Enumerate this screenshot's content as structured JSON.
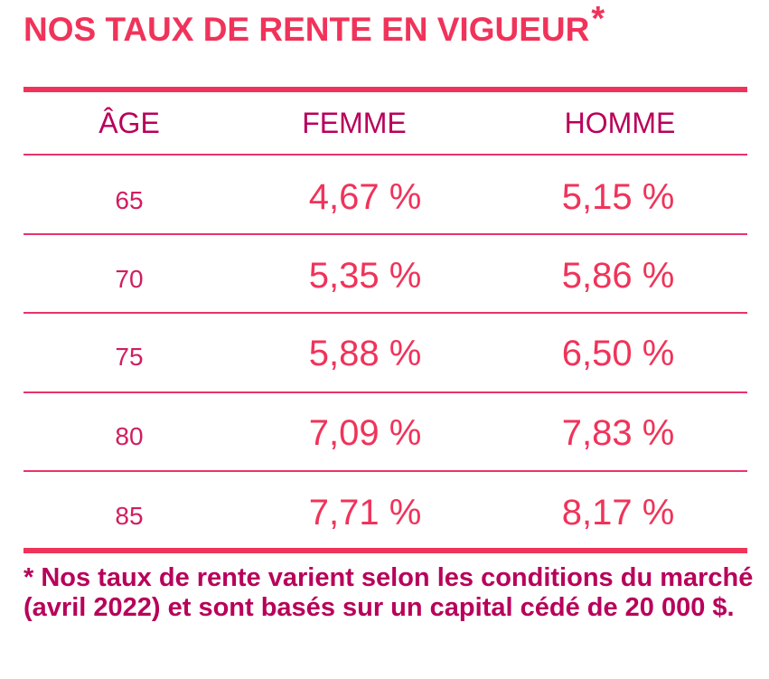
{
  "title": "NOS TAUX DE RENTE EN VIGUEUR",
  "title_star": "*",
  "table": {
    "headers": [
      "ÂGE",
      "FEMME",
      "HOMME"
    ],
    "rows": [
      {
        "age": "65",
        "femme": "4,67 %",
        "homme": "5,15 %"
      },
      {
        "age": "70",
        "femme": "5,35 %",
        "homme": "5,86 %"
      },
      {
        "age": "75",
        "femme": "5,88 %",
        "homme": "6,50 %"
      },
      {
        "age": "80",
        "femme": "7,09 %",
        "homme": "7,83 %"
      },
      {
        "age": "85",
        "femme": "7,71 %",
        "homme": "8,17 %"
      }
    ]
  },
  "footnote": "* Nos taux de rente varient selon les conditions du marché (avril 2022) et sont basés sur un capital cédé de 20 000 $.",
  "colors": {
    "accent": "#f0335a",
    "dark_accent": "#b8005a"
  }
}
